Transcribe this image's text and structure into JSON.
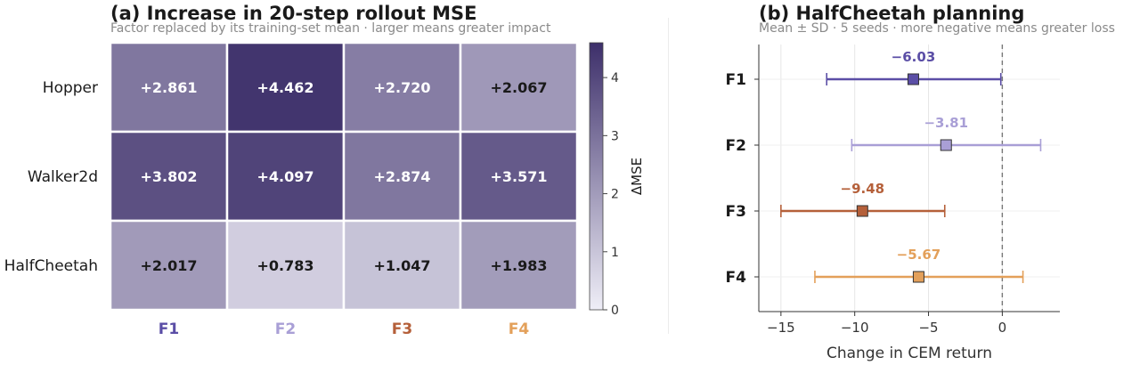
{
  "chart_data": [
    {
      "type": "heatmap",
      "title": "(a)  Increase in 20-step rollout MSE",
      "subtitle": "Factor replaced by its training-set mean  ·  larger means greater impact",
      "rows": [
        "Hopper",
        "Walker2d",
        "HalfCheetah"
      ],
      "columns": [
        "F1",
        "F2",
        "F3",
        "F4"
      ],
      "column_colors": [
        "#5b4ea6",
        "#a99fd6",
        "#b5603a",
        "#e3a05a"
      ],
      "values": [
        [
          2.861,
          4.462,
          2.72,
          2.067
        ],
        [
          3.802,
          4.097,
          2.874,
          3.571
        ],
        [
          2.017,
          0.783,
          1.047,
          1.983
        ]
      ],
      "cell_labels": [
        [
          "+2.861",
          "+4.462",
          "+2.720",
          "+2.067"
        ],
        [
          "+3.802",
          "+4.097",
          "+2.874",
          "+3.571"
        ],
        [
          "+2.017",
          "+0.783",
          "+1.047",
          "+1.983"
        ]
      ],
      "colorbar": {
        "label": "ΔMSE",
        "range": [
          0,
          4.6
        ],
        "ticks": [
          0,
          1,
          2,
          3,
          4
        ],
        "cmap": [
          "#efeef7",
          "#3d2f6a"
        ]
      }
    },
    {
      "type": "scatter",
      "title": "(b)  HalfCheetah planning",
      "subtitle": "Mean ± SD  ·  5 seeds  ·  more negative means greater loss",
      "xlabel": "Change in CEM return",
      "xlim": [
        -16.5,
        3.9
      ],
      "xticks": [
        -15,
        -10,
        -5,
        0
      ],
      "xtick_labels": [
        "−15",
        "−10",
        "−5",
        "0"
      ],
      "categories": [
        "F1",
        "F2",
        "F3",
        "F4"
      ],
      "series": [
        {
          "category": "F1",
          "mean": -6.03,
          "low": -11.9,
          "high": -0.1,
          "label": "−6.03",
          "color": "#5b4ea6"
        },
        {
          "category": "F2",
          "mean": -3.81,
          "low": -10.2,
          "high": 2.6,
          "label": "−3.81",
          "color": "#a99fd6"
        },
        {
          "category": "F3",
          "mean": -9.48,
          "low": -15.0,
          "high": -3.9,
          "label": "−9.48",
          "color": "#b5603a"
        },
        {
          "category": "F4",
          "mean": -5.67,
          "low": -12.7,
          "high": 1.4,
          "label": "−5.67",
          "color": "#e3a05a"
        }
      ],
      "reference_line": 0,
      "grid": true
    }
  ]
}
